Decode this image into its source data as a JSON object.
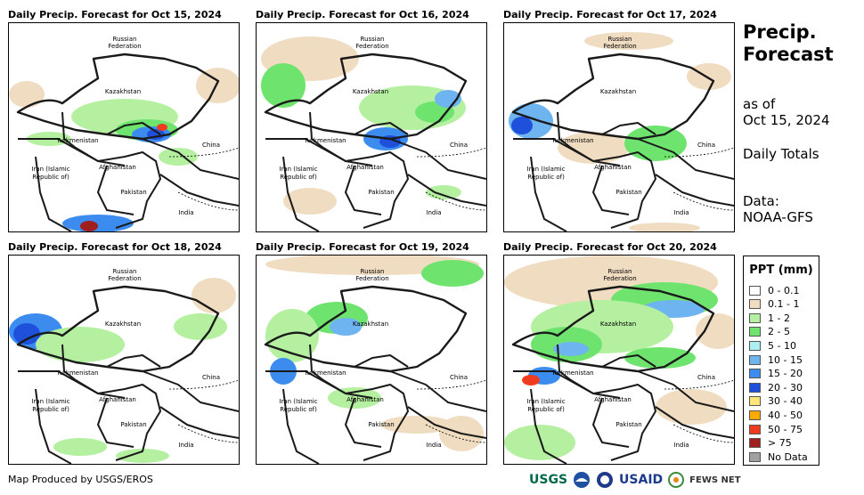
{
  "panels": [
    {
      "title": "Daily Precip. Forecast for Oct 15, 2024"
    },
    {
      "title": "Daily Precip. Forecast for Oct 16, 2024"
    },
    {
      "title": "Daily Precip. Forecast for Oct 17, 2024"
    },
    {
      "title": "Daily Precip. Forecast for Oct 18, 2024"
    },
    {
      "title": "Daily Precip. Forecast for Oct 19, 2024"
    },
    {
      "title": "Daily Precip. Forecast for Oct 20, 2024"
    }
  ],
  "map_labels": {
    "russia_1": "Russian",
    "russia_2": "Federation",
    "kazakhstan": "Kazakhstan",
    "turkmenistan": "Turkmenistan",
    "china": "China",
    "iran_1": "Iran  (Islamic",
    "iran_2": "Republic of)",
    "afghanistan": "Afghanistan",
    "pakistan": "Pakistan",
    "india": "India"
  },
  "sidebar": {
    "title_line1": "Precip.",
    "title_line2": "Forecast",
    "asof_line1": "as of",
    "asof_line2": "Oct 15, 2024",
    "totals": "Daily Totals",
    "data_line1": "Data:",
    "data_line2": "NOAA-GFS"
  },
  "legend": {
    "title": "PPT (mm)",
    "items": [
      {
        "label": "0 - 0.1",
        "color": "#ffffff"
      },
      {
        "label": "0.1 - 1",
        "color": "#f0dcc0"
      },
      {
        "label": "1 - 2",
        "color": "#b4f0a0"
      },
      {
        "label": "2 - 5",
        "color": "#6ee46e"
      },
      {
        "label": "5 - 10",
        "color": "#aaf0f0"
      },
      {
        "label": "10 - 15",
        "color": "#6eb4f0"
      },
      {
        "label": "15 - 20",
        "color": "#3c8cf0"
      },
      {
        "label": "20 - 30",
        "color": "#1e50dc"
      },
      {
        "label": "30 - 40",
        "color": "#ffe678"
      },
      {
        "label": "40 - 50",
        "color": "#ffaa00"
      },
      {
        "label": "50 - 75",
        "color": "#f03c1e"
      },
      {
        "label": "> 75",
        "color": "#a01e1e"
      },
      {
        "label": "No Data",
        "color": "#a0a0a0"
      }
    ]
  },
  "footer": {
    "credit": "Map Produced by USGS/EROS",
    "logo_usgs": "USGS",
    "logo_usaid": "USAID",
    "logo_fews": "FEWS NET"
  }
}
